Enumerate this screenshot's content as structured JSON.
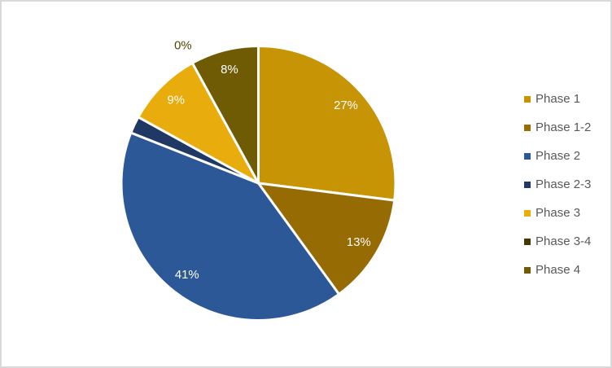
{
  "frame": {
    "border_color": "#D9D9D9",
    "background_color": "#FFFFFF"
  },
  "chart_data": {
    "type": "pie",
    "title": "",
    "legend_position": "right",
    "total": 100,
    "categories": [
      "Phase 1",
      "Phase 1-2",
      "Phase 2",
      "Phase 2-3",
      "Phase 3",
      "Phase 3-4",
      "Phase 4"
    ],
    "values": [
      27,
      13,
      41,
      2,
      9,
      0,
      8
    ],
    "slices": [
      {
        "label": "Phase 1",
        "value": 27,
        "pct_label": "27%",
        "color": "#C79405",
        "label_placement": "inside"
      },
      {
        "label": "Phase 1-2",
        "value": 13,
        "pct_label": "13%",
        "color": "#966B03",
        "label_placement": "inside"
      },
      {
        "label": "Phase 2",
        "value": 41,
        "pct_label": "41%",
        "color": "#2C5898",
        "label_placement": "inside"
      },
      {
        "label": "Phase 2-3",
        "value": 2,
        "pct_label": "",
        "color": "#1F3864",
        "label_placement": "none"
      },
      {
        "label": "Phase 3",
        "value": 9,
        "pct_label": "9%",
        "color": "#E9AC0D",
        "label_placement": "inside"
      },
      {
        "label": "Phase 3-4",
        "value": 0,
        "pct_label": "0%",
        "color": "#443902",
        "label_placement": "outside"
      },
      {
        "label": "Phase 4",
        "value": 8,
        "pct_label": "8%",
        "color": "#6F5B04",
        "label_placement": "inside"
      }
    ],
    "inside_label_color": "#FFFFFF",
    "outside_label_color": "#4F4101",
    "legend_text_color": "#595959",
    "slice_separator_color": "#FFFFFF"
  }
}
